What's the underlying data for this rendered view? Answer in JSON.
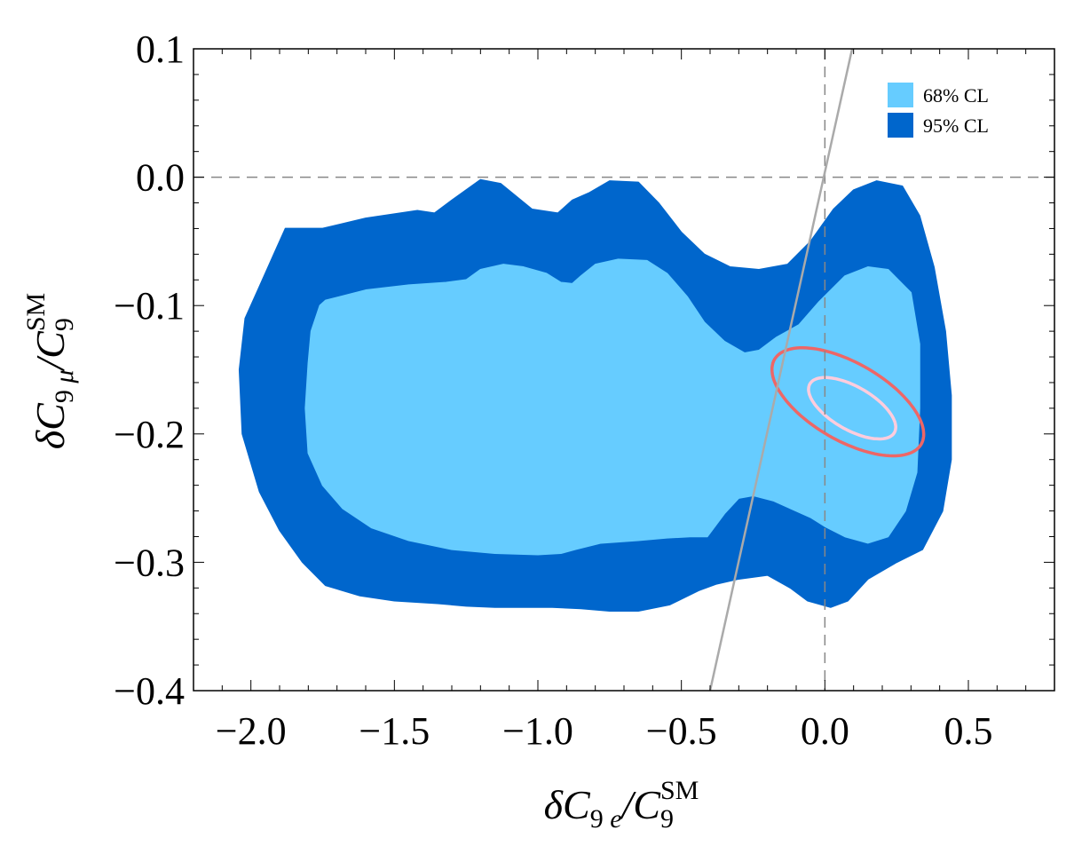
{
  "chart_data": {
    "type": "contour",
    "title": "",
    "xlabel": "δC9e/C9SM",
    "ylabel": "δC9μ/C9SM",
    "xlim": [
      -2.2,
      0.8
    ],
    "ylim": [
      -0.4,
      0.1
    ],
    "x_ticks": [
      {
        "value": -2.0,
        "label": "−2.0"
      },
      {
        "value": -1.5,
        "label": "−1.5"
      },
      {
        "value": -1.0,
        "label": "−1.0"
      },
      {
        "value": -0.5,
        "label": "−0.5"
      },
      {
        "value": 0.0,
        "label": "0.0"
      },
      {
        "value": 0.5,
        "label": "0.5"
      }
    ],
    "y_ticks": [
      {
        "value": 0.1,
        "label": "0.1"
      },
      {
        "value": 0.0,
        "label": "0.0"
      },
      {
        "value": -0.1,
        "label": "−0.1"
      },
      {
        "value": -0.2,
        "label": "−0.2"
      },
      {
        "value": -0.3,
        "label": "−0.3"
      },
      {
        "value": -0.4,
        "label": "−0.4"
      }
    ],
    "legend": {
      "position": "top-right",
      "entries": [
        {
          "label": "68% CL",
          "color": "#66CCFF"
        },
        {
          "label": "95% CL",
          "color": "#0066CC"
        }
      ]
    },
    "reference_lines": [
      {
        "type": "horizontal",
        "y": 0.0,
        "style": "dashed",
        "color": "#888888"
      },
      {
        "type": "vertical",
        "x": 0.0,
        "style": "dashed",
        "color": "#888888"
      },
      {
        "type": "line",
        "points": [
          [
            -0.4,
            -0.4
          ],
          [
            0.095,
            0.1
          ]
        ],
        "color": "#aaaaaa"
      }
    ],
    "regions": [
      {
        "name": "95% CL",
        "color": "#0066CC",
        "boundary": [
          [
            -1.97,
            -0.085
          ],
          [
            -1.92,
            -0.06
          ],
          [
            -1.88,
            -0.04
          ],
          [
            -1.75,
            -0.04
          ],
          [
            -1.6,
            -0.032
          ],
          [
            -1.42,
            -0.026
          ],
          [
            -1.36,
            -0.028
          ],
          [
            -1.3,
            -0.018
          ],
          [
            -1.2,
            -0.002
          ],
          [
            -1.13,
            -0.005
          ],
          [
            -1.02,
            -0.025
          ],
          [
            -0.93,
            -0.028
          ],
          [
            -0.88,
            -0.018
          ],
          [
            -0.82,
            -0.012
          ],
          [
            -0.75,
            -0.003
          ],
          [
            -0.65,
            -0.004
          ],
          [
            -0.58,
            -0.02
          ],
          [
            -0.5,
            -0.043
          ],
          [
            -0.42,
            -0.06
          ],
          [
            -0.33,
            -0.07
          ],
          [
            -0.23,
            -0.072
          ],
          [
            -0.13,
            -0.068
          ],
          [
            -0.05,
            -0.05
          ],
          [
            0.03,
            -0.025
          ],
          [
            0.1,
            -0.01
          ],
          [
            0.18,
            -0.003
          ],
          [
            0.27,
            -0.007
          ],
          [
            0.33,
            -0.03
          ],
          [
            0.38,
            -0.07
          ],
          [
            0.42,
            -0.12
          ],
          [
            0.44,
            -0.17
          ],
          [
            0.44,
            -0.22
          ],
          [
            0.41,
            -0.26
          ],
          [
            0.34,
            -0.29
          ],
          [
            0.25,
            -0.3
          ],
          [
            0.15,
            -0.313
          ],
          [
            0.08,
            -0.33
          ],
          [
            0.02,
            -0.335
          ],
          [
            -0.06,
            -0.33
          ],
          [
            -0.12,
            -0.32
          ],
          [
            -0.2,
            -0.31
          ],
          [
            -0.3,
            -0.313
          ],
          [
            -0.38,
            -0.317
          ],
          [
            -0.44,
            -0.322
          ],
          [
            -0.54,
            -0.333
          ],
          [
            -0.65,
            -0.338
          ],
          [
            -0.75,
            -0.338
          ],
          [
            -0.85,
            -0.336
          ],
          [
            -0.95,
            -0.335
          ],
          [
            -1.05,
            -0.335
          ],
          [
            -1.15,
            -0.335
          ],
          [
            -1.25,
            -0.334
          ],
          [
            -1.35,
            -0.332
          ],
          [
            -1.5,
            -0.33
          ],
          [
            -1.62,
            -0.326
          ],
          [
            -1.74,
            -0.318
          ],
          [
            -1.82,
            -0.3
          ],
          [
            -1.9,
            -0.275
          ],
          [
            -1.97,
            -0.245
          ],
          [
            -2.03,
            -0.2
          ],
          [
            -2.04,
            -0.15
          ],
          [
            -2.02,
            -0.11
          ]
        ]
      },
      {
        "name": "68% CL",
        "color": "#66CCFF",
        "boundary": [
          [
            -1.76,
            -0.1
          ],
          [
            -1.74,
            -0.096
          ],
          [
            -1.6,
            -0.088
          ],
          [
            -1.45,
            -0.084
          ],
          [
            -1.32,
            -0.082
          ],
          [
            -1.25,
            -0.08
          ],
          [
            -1.2,
            -0.072
          ],
          [
            -1.12,
            -0.068
          ],
          [
            -1.05,
            -0.07
          ],
          [
            -0.97,
            -0.075
          ],
          [
            -0.92,
            -0.082
          ],
          [
            -0.88,
            -0.083
          ],
          [
            -0.85,
            -0.077
          ],
          [
            -0.8,
            -0.068
          ],
          [
            -0.72,
            -0.064
          ],
          [
            -0.62,
            -0.065
          ],
          [
            -0.55,
            -0.075
          ],
          [
            -0.48,
            -0.093
          ],
          [
            -0.42,
            -0.113
          ],
          [
            -0.35,
            -0.128
          ],
          [
            -0.28,
            -0.137
          ],
          [
            -0.23,
            -0.135
          ],
          [
            -0.17,
            -0.125
          ],
          [
            -0.09,
            -0.115
          ],
          [
            -0.02,
            -0.097
          ],
          [
            0.07,
            -0.077
          ],
          [
            0.15,
            -0.07
          ],
          [
            0.22,
            -0.072
          ],
          [
            0.3,
            -0.09
          ],
          [
            0.33,
            -0.13
          ],
          [
            0.33,
            -0.18
          ],
          [
            0.32,
            -0.23
          ],
          [
            0.28,
            -0.26
          ],
          [
            0.22,
            -0.28
          ],
          [
            0.15,
            -0.285
          ],
          [
            0.07,
            -0.28
          ],
          [
            0.0,
            -0.272
          ],
          [
            -0.05,
            -0.265
          ],
          [
            -0.12,
            -0.258
          ],
          [
            -0.18,
            -0.252
          ],
          [
            -0.25,
            -0.248
          ],
          [
            -0.3,
            -0.25
          ],
          [
            -0.35,
            -0.262
          ],
          [
            -0.41,
            -0.28
          ],
          [
            -0.47,
            -0.28
          ],
          [
            -0.55,
            -0.281
          ],
          [
            -0.65,
            -0.283
          ],
          [
            -0.78,
            -0.285
          ],
          [
            -0.87,
            -0.29
          ],
          [
            -0.92,
            -0.293
          ],
          [
            -1.0,
            -0.294
          ],
          [
            -1.15,
            -0.293
          ],
          [
            -1.3,
            -0.29
          ],
          [
            -1.45,
            -0.283
          ],
          [
            -1.58,
            -0.273
          ],
          [
            -1.68,
            -0.258
          ],
          [
            -1.75,
            -0.24
          ],
          [
            -1.8,
            -0.215
          ],
          [
            -1.81,
            -0.18
          ],
          [
            -1.8,
            -0.145
          ],
          [
            -1.79,
            -0.12
          ]
        ]
      }
    ],
    "contours": [
      {
        "name": "outer ellipse",
        "color": "#EE6666",
        "center": [
          0.08,
          -0.175
        ],
        "semi_x": 0.27,
        "semi_y": 0.132,
        "rotation_deg": 60
      },
      {
        "name": "inner ellipse",
        "color": "#FFCCDD",
        "center": [
          0.095,
          -0.18
        ],
        "semi_x": 0.15,
        "semi_y": 0.076,
        "rotation_deg": 60
      }
    ]
  }
}
